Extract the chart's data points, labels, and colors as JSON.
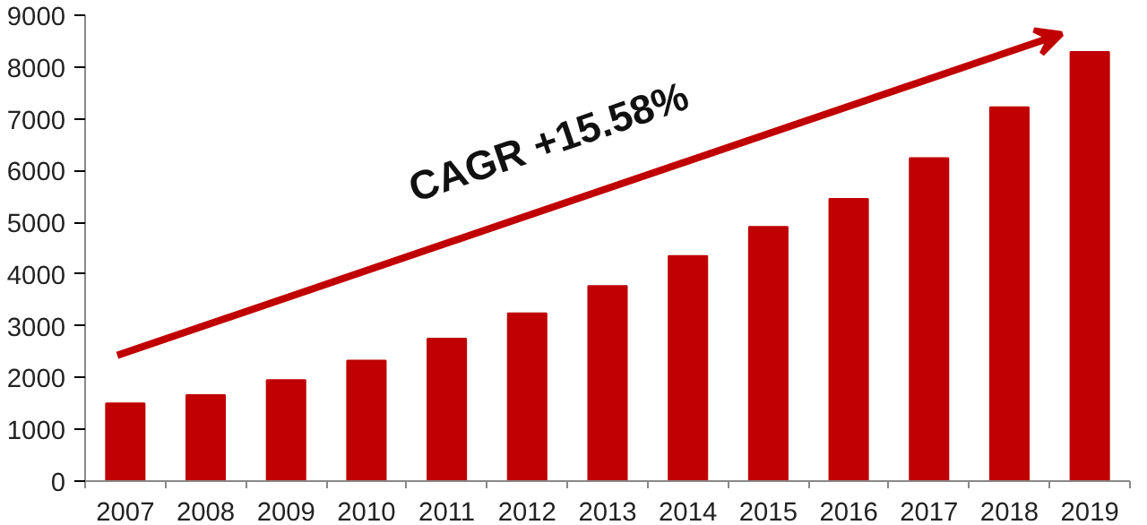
{
  "chart_data": {
    "type": "bar",
    "categories": [
      "2007",
      "2008",
      "2009",
      "2010",
      "2011",
      "2012",
      "2013",
      "2014",
      "2015",
      "2016",
      "2017",
      "2018",
      "2019"
    ],
    "values": [
      1500,
      1660,
      1950,
      2330,
      2750,
      3240,
      3770,
      4350,
      4910,
      5450,
      6240,
      7220,
      8290
    ],
    "color": "#c00000",
    "ylim": [
      0,
      9000
    ],
    "yticks": [
      0,
      1000,
      2000,
      3000,
      4000,
      5000,
      6000,
      7000,
      8000,
      9000
    ],
    "grid": false,
    "annotations": [
      "CAGR +15.58%"
    ]
  }
}
